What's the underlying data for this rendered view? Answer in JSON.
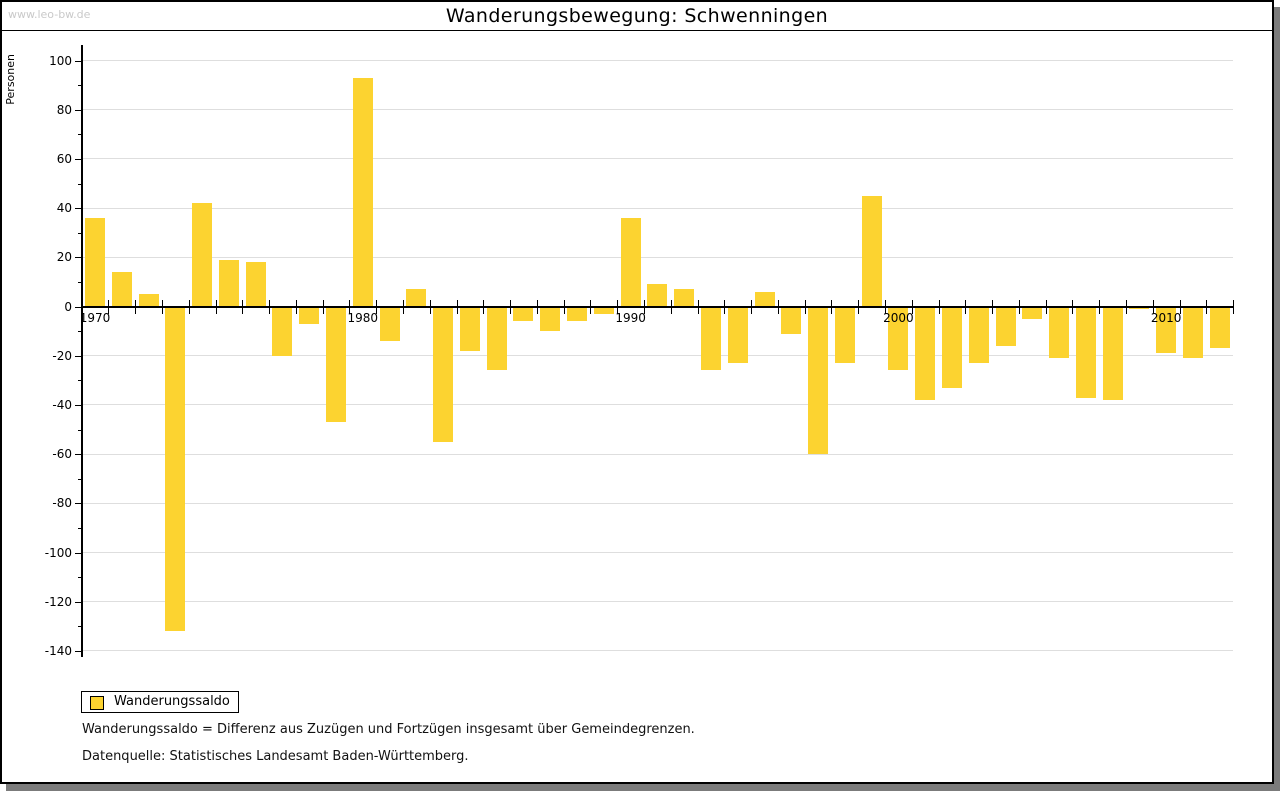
{
  "page": {
    "watermark": "www.leo-bw.de",
    "title": "Wanderungsbewegung: Schwenningen"
  },
  "legend": {
    "label": "Wanderungssaldo"
  },
  "footnotes": {
    "definition": "Wanderungssaldo = Differenz aus Zuzügen und Fortzügen insgesamt über Gemeindegrenzen.",
    "source": "Datenquelle: Statistisches Landesamt Baden-Württemberg."
  },
  "chart_data": {
    "type": "bar",
    "title": "Wanderungsbewegung: Schwenningen",
    "xlabel": "",
    "ylabel": "Personen",
    "series_name": "Wanderungssaldo",
    "bar_color": "#FCD330",
    "grid": true,
    "legend_position": "bottom-left",
    "ylim": [
      -140,
      100
    ],
    "ytick_step": 20,
    "ytick_minor_step": 10,
    "xtick_labels": [
      "1970",
      "1980",
      "1990",
      "2000",
      "2010"
    ],
    "categories": [
      1970,
      1971,
      1972,
      1973,
      1974,
      1975,
      1976,
      1977,
      1978,
      1979,
      1980,
      1981,
      1982,
      1983,
      1984,
      1985,
      1986,
      1987,
      1988,
      1989,
      1990,
      1991,
      1992,
      1993,
      1994,
      1995,
      1996,
      1997,
      1998,
      1999,
      2000,
      2001,
      2002,
      2003,
      2004,
      2005,
      2006,
      2007,
      2008,
      2009,
      2010,
      2011,
      2012
    ],
    "values": [
      36,
      14,
      5,
      -132,
      42,
      19,
      18,
      -20,
      -7,
      -47,
      93,
      -14,
      7,
      -55,
      -18,
      -26,
      -6,
      -10,
      -6,
      -3,
      36,
      9,
      7,
      -26,
      -23,
      6,
      -11,
      -60,
      -23,
      45,
      -26,
      -38,
      -33,
      -23,
      -16,
      -5,
      -21,
      -37,
      -38,
      -1,
      -19,
      -21,
      -17
    ]
  }
}
